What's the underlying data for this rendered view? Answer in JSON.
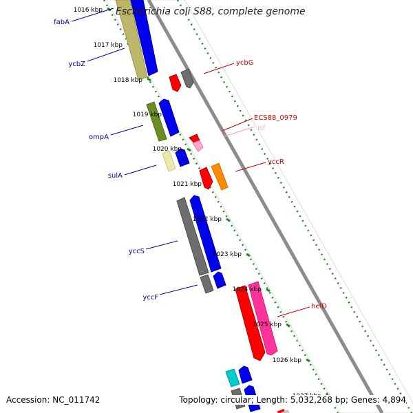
{
  "title": "Escherichia coli S88, complete genome",
  "accession_line": "Accession: NC_011742",
  "topology_line": "Topology: circular; Length: 5,032,268 bp; Genes: 4,894",
  "ticks": [
    "1016 kbp",
    "1017 kbp",
    "1018 kbp",
    "1019 kbp",
    "1020 kbp",
    "1021 kbp",
    "1022 kbp",
    "1023 kbp",
    "1024 kbp",
    "1025 kbp",
    "1026 kbp",
    "1027 kbp"
  ],
  "left_labels": [
    "fabA",
    "ycbZ",
    "ompA",
    "sulA",
    "yccS",
    "yccF"
  ],
  "right_labels": [
    "ycbG",
    "ECS88_0979",
    "isf",
    "yccR",
    "helD"
  ],
  "colors": {
    "forward": "#0000ee",
    "reverse_gray": "#6e6e6e",
    "khaki": "#bdb76b",
    "olive": "#6b8e23",
    "pale": "#eee8aa",
    "red": "#ff0000",
    "orange": "#ff8c00",
    "pink": "#ff69b4",
    "light_pink": "#ffaacc",
    "cyan": "#00cccc",
    "ticks": "#006400",
    "backbone": "#888888"
  }
}
